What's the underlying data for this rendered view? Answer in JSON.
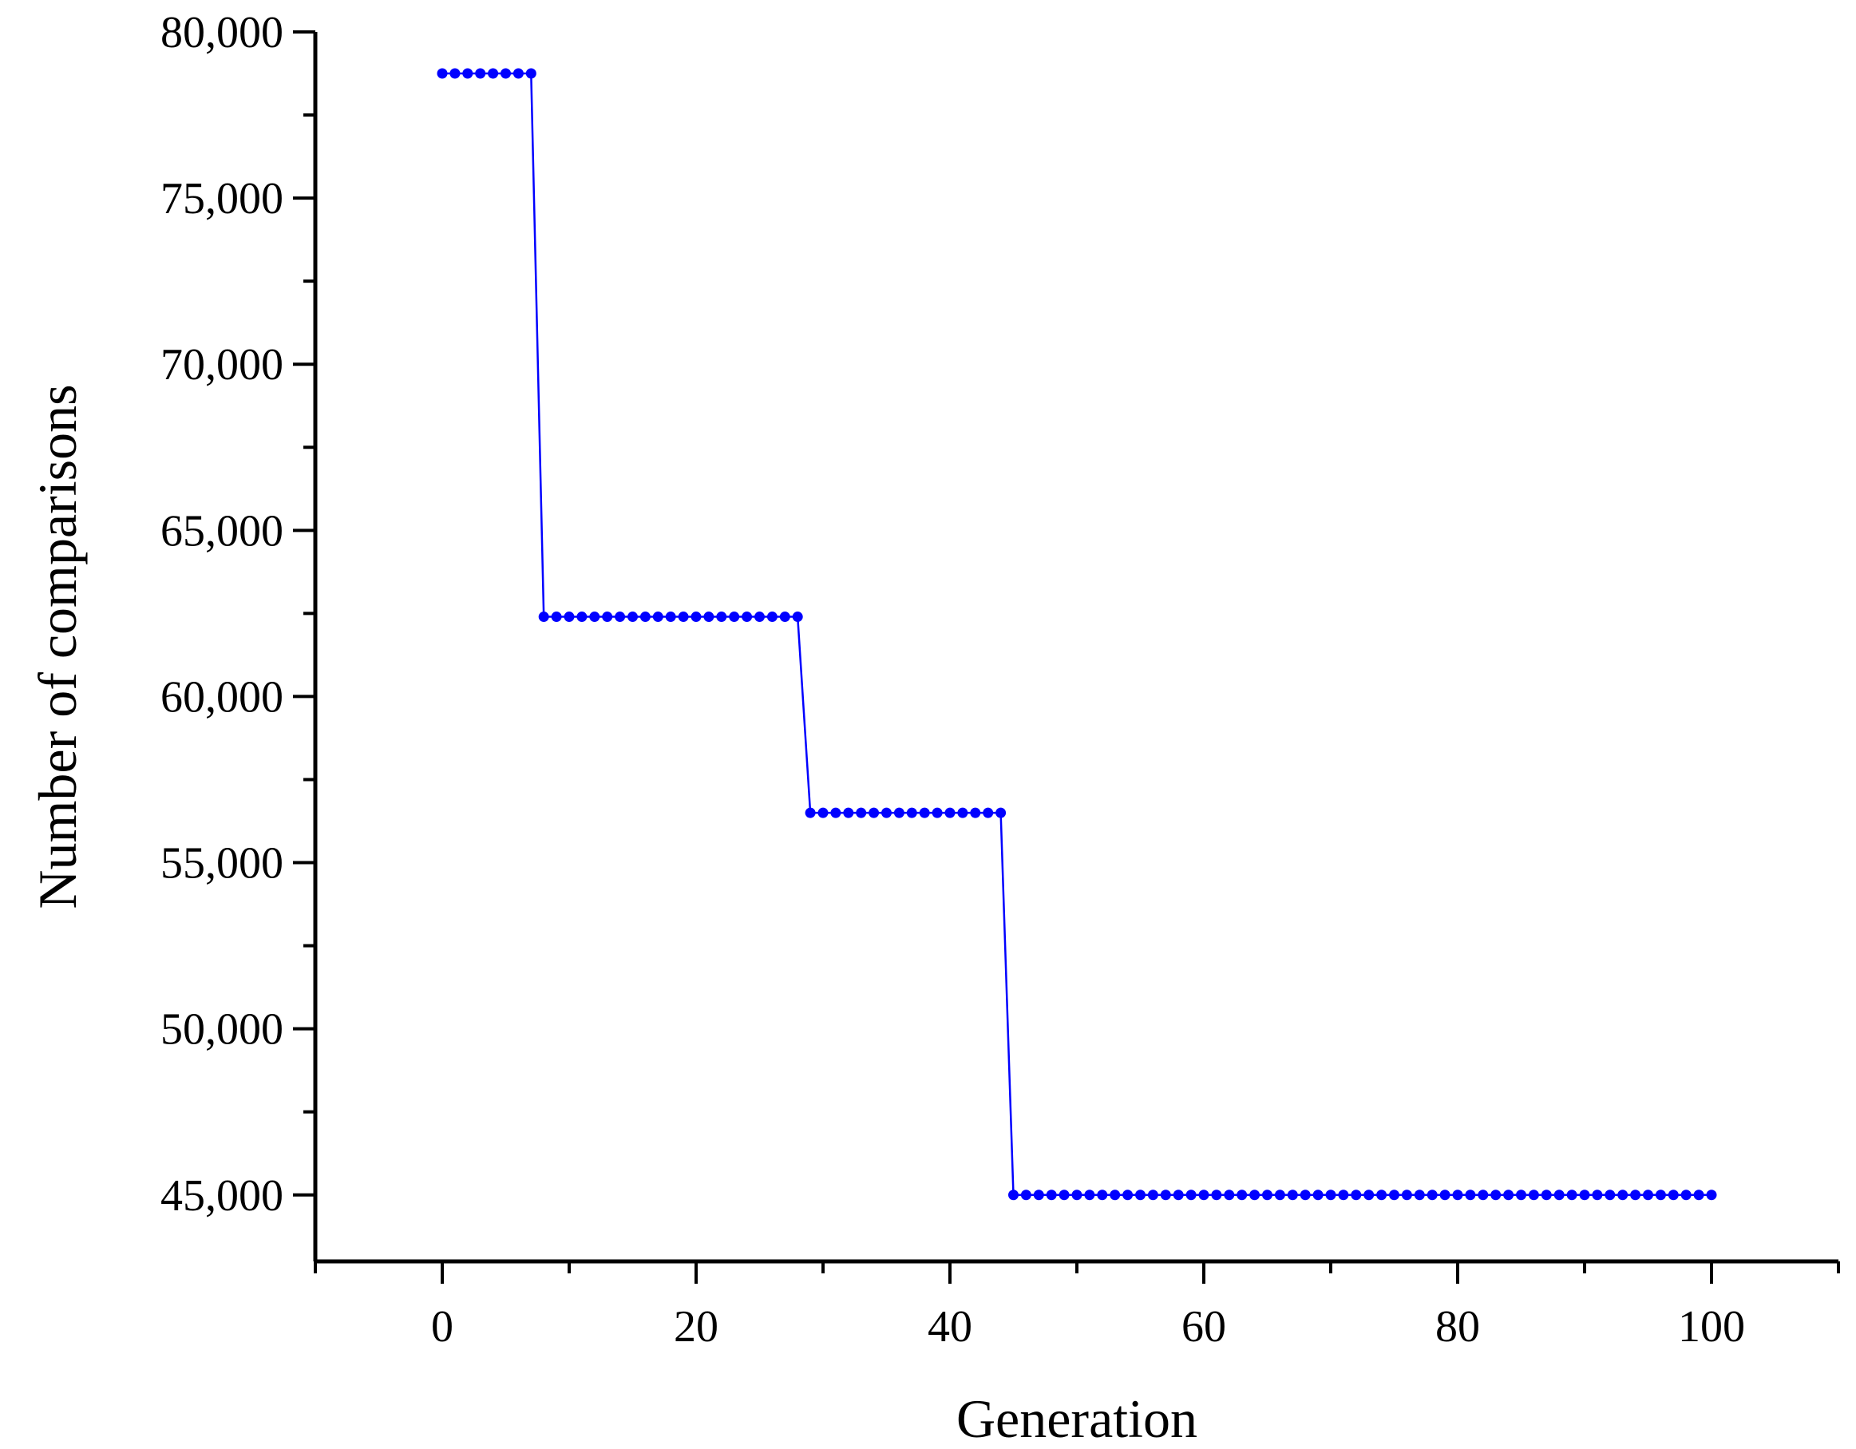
{
  "chart_data": {
    "type": "line",
    "xlabel": "Generation",
    "ylabel": "Number of comparisons",
    "xlim": [
      -10,
      110
    ],
    "ylim": [
      43000,
      80000
    ],
    "x_ticks": [
      0,
      20,
      40,
      60,
      80,
      100
    ],
    "x_tick_labels": [
      "0",
      "20",
      "40",
      "60",
      "80",
      "100"
    ],
    "y_ticks": [
      45000,
      50000,
      55000,
      60000,
      65000,
      70000,
      75000,
      80000
    ],
    "y_tick_labels": [
      "45,000",
      "50,000",
      "55,000",
      "60,000",
      "65,000",
      "70,000",
      "75,000",
      "80,000"
    ],
    "grid": false,
    "marker": "circle",
    "series_color": "#0000ff",
    "segments": [
      {
        "x_start": 0,
        "x_end": 7,
        "y": 78750
      },
      {
        "x_start": 8,
        "x_end": 28,
        "y": 62400
      },
      {
        "x_start": 29,
        "x_end": 44,
        "y": 56500
      },
      {
        "x_start": 45,
        "x_end": 100,
        "y": 45000
      }
    ]
  }
}
